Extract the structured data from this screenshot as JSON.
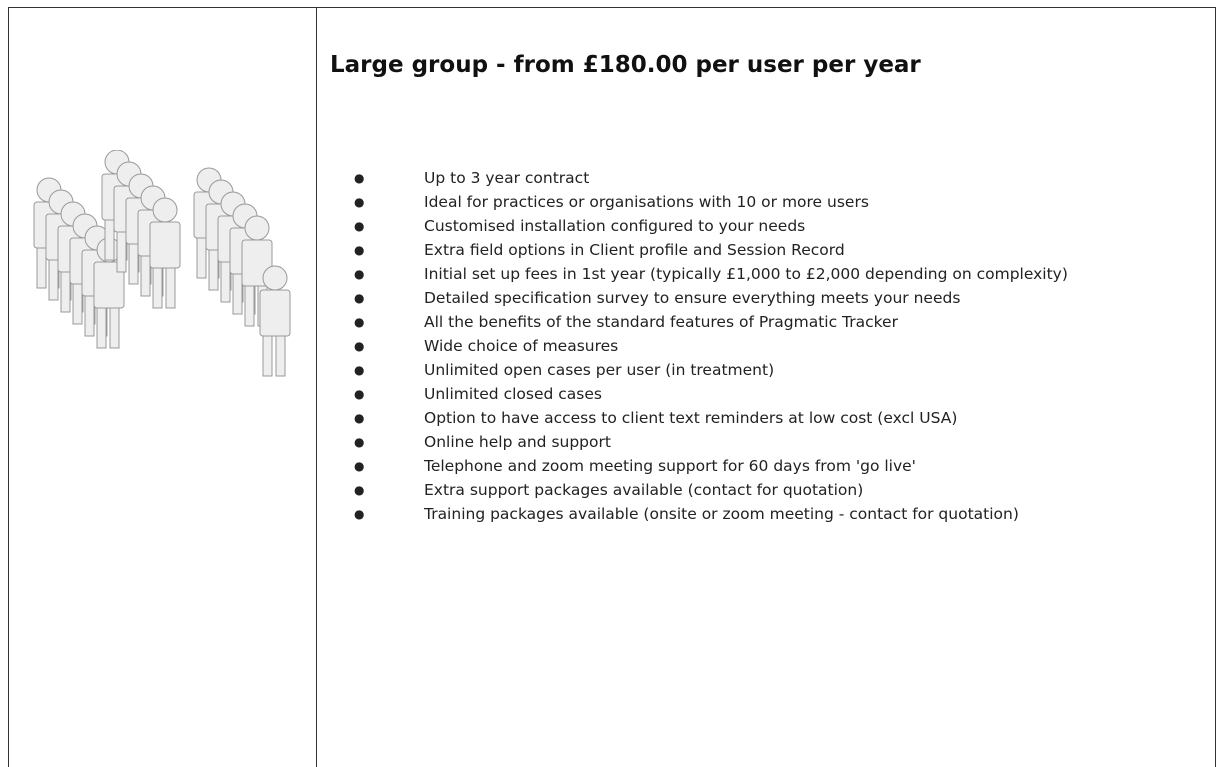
{
  "header": {
    "title": "Large group - from £180.00 per user per year"
  },
  "list": {
    "items": [
      "Up to 3 year contract",
      "Ideal for practices or organisations with 10 or more users",
      "Customised installation configured to your needs",
      "Extra field options in Client profile and Session Record",
      "Initial set up fees in 1st year (typically £1,000 to £2,000 depending on complexity)",
      "Detailed specification survey to ensure everything meets your needs",
      "All the benefits of the standard features of Pragmatic Tracker",
      "Wide choice of measures",
      "Unlimited open cases per user (in treatment)",
      "Unlimited closed cases",
      "Option to have access to client text reminders at low cost (excl USA)",
      "Online help and support",
      "Telephone and zoom meeting support for 60 days from 'go live'",
      "Extra support packages available (contact for quotation)",
      "Training packages available (onsite or zoom meeting - contact for quotation)"
    ]
  }
}
